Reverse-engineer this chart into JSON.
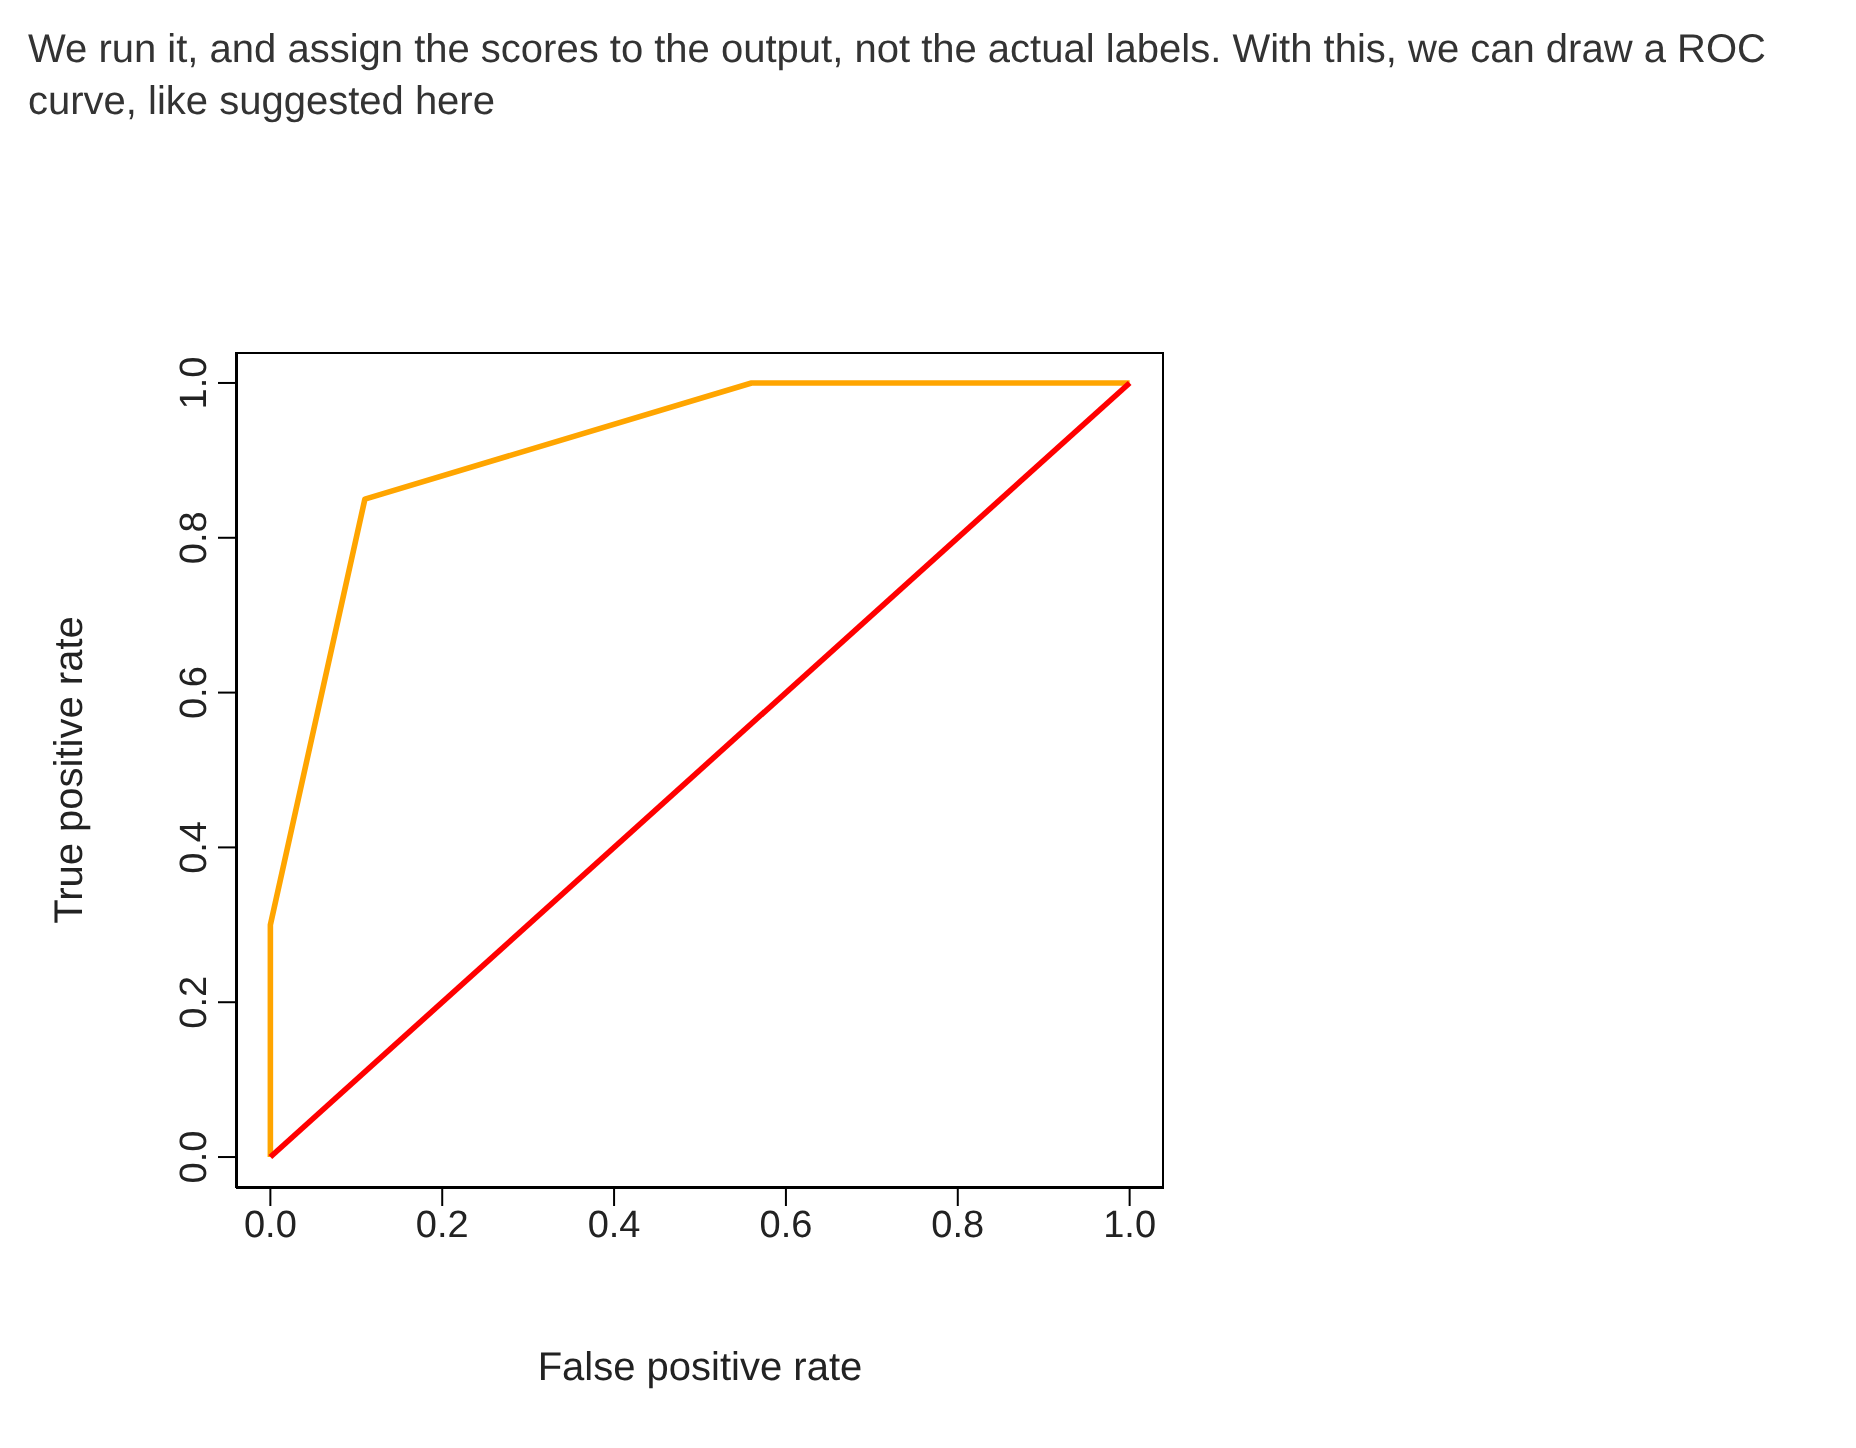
{
  "chart_data": {
    "type": "line",
    "annotations": [
      "We run it, and assign the scores to the output, not the actual labels. With this, we can draw a ROC curve, like suggested here"
    ],
    "xlabel": "False positive rate",
    "ylabel": "True positive rate",
    "series": [
      {
        "color": "#ffa500",
        "x": [
          0,
          0,
          0.11,
          0.56,
          1
        ],
        "values": [
          0,
          0.3,
          0.85,
          1,
          1
        ]
      },
      {
        "color": "#ff0000",
        "x": [
          0,
          1
        ],
        "values": [
          0,
          1
        ]
      }
    ],
    "xlim": [
      -0.04,
      1.04
    ],
    "ylim": [
      -0.04,
      1.04
    ],
    "xticks": [
      {
        "value": 0,
        "label": "0.0"
      },
      0.2,
      0.4,
      0.6,
      0.8,
      {
        "value": 1,
        "label": "1.0"
      }
    ],
    "yticks": [
      {
        "value": 0,
        "label": "0.0"
      },
      0.2,
      0.4,
      0.6,
      0.8,
      {
        "value": 1,
        "label": "1.0"
      }
    ],
    "marker": "none",
    "line_style": "solid"
  }
}
